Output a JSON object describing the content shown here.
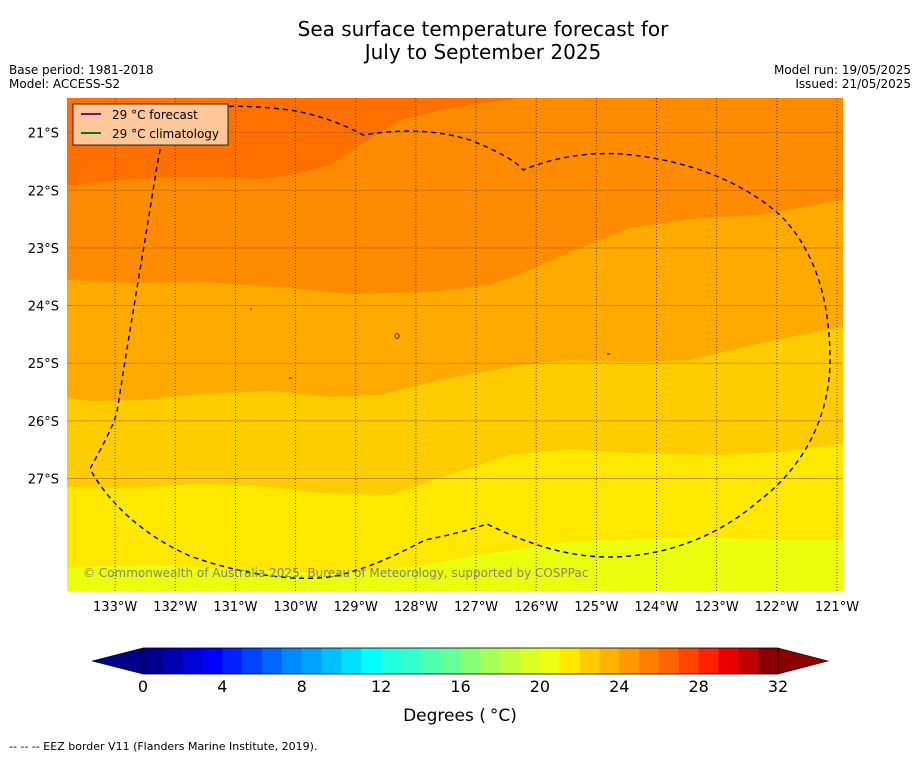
{
  "title_line1": "Sea surface temperature forecast for",
  "title_line2": "July to September 2025",
  "base_period": "Base period: 1981-2018",
  "model": "Model: ACCESS-S2",
  "model_run": "Model run: 19/05/2025",
  "issued": "Issued: 21/05/2025",
  "legend": {
    "forecast_label": "29 °C  forecast",
    "climatology_label": "29 °C  climatology",
    "forecast_color": "#8b008b",
    "climatology_color": "#008000"
  },
  "copyright": "© Commonwealth of Australia 2025, Bureau of Meteorology, supported by COSPPac",
  "lat_labels": [
    "21°S",
    "22°S",
    "23°S",
    "24°S",
    "25°S",
    "26°S",
    "27°S"
  ],
  "lat_values": [
    -21,
    -22,
    -23,
    -24,
    -25,
    -26,
    -27
  ],
  "lon_labels": [
    "133°W",
    "132°W",
    "131°W",
    "130°W",
    "129°W",
    "128°W",
    "127°W",
    "126°W",
    "125°W",
    "124°W",
    "123°W",
    "122°W",
    "121°W"
  ],
  "lon_values": [
    -133,
    -132,
    -131,
    -130,
    -129,
    -128,
    -127,
    -126,
    -125,
    -124,
    -123,
    -122,
    -121
  ],
  "map_extent": {
    "lon": [
      -133.8,
      -120.9
    ],
    "lat": [
      -28.95,
      -20.4
    ]
  },
  "colorbar": {
    "ticks": [
      "0",
      "4",
      "8",
      "12",
      "16",
      "20",
      "24",
      "28",
      "32"
    ],
    "tick_values": [
      0,
      4,
      8,
      12,
      16,
      20,
      24,
      28,
      32
    ],
    "range": [
      0,
      32
    ],
    "step": 1,
    "label_main": "Degrees (",
    "label_unit": "°C)",
    "colors": [
      "#00008b",
      "#0000b3",
      "#0000d9",
      "#0000ff",
      "#0022ff",
      "#0044ff",
      "#0066ff",
      "#0088ff",
      "#00a3ff",
      "#00c1ff",
      "#00e0ff",
      "#00ffff",
      "#22ffdd",
      "#33ffcc",
      "#4fffb0",
      "#66ff99",
      "#88ff77",
      "#a6ff59",
      "#c0ff40",
      "#d9ff26",
      "#eeff11",
      "#ffe800",
      "#ffcc00",
      "#ffb200",
      "#ff9900",
      "#ff8000",
      "#ff6600",
      "#ff4400",
      "#ff2200",
      "#ee0000",
      "#c00000",
      "#8b0000"
    ],
    "under_color": "#00008b",
    "over_color": "#8b0000"
  },
  "sst_bands": [
    {
      "range_c": [
        22,
        23
      ],
      "color": "#ebff0d"
    },
    {
      "range_c": [
        23,
        24
      ],
      "color": "#ffe800"
    },
    {
      "range_c": [
        24,
        25
      ],
      "color": "#ffcc00"
    },
    {
      "range_c": [
        25,
        26
      ],
      "color": "#ffaa00"
    },
    {
      "range_c": [
        26,
        27
      ],
      "color": "#ff8c00"
    },
    {
      "range_c": [
        27,
        28
      ],
      "color": "#ff7000"
    }
  ],
  "footer": "--  --  -- EEZ border V11 (Flanders Marine Institute, 2019)."
}
